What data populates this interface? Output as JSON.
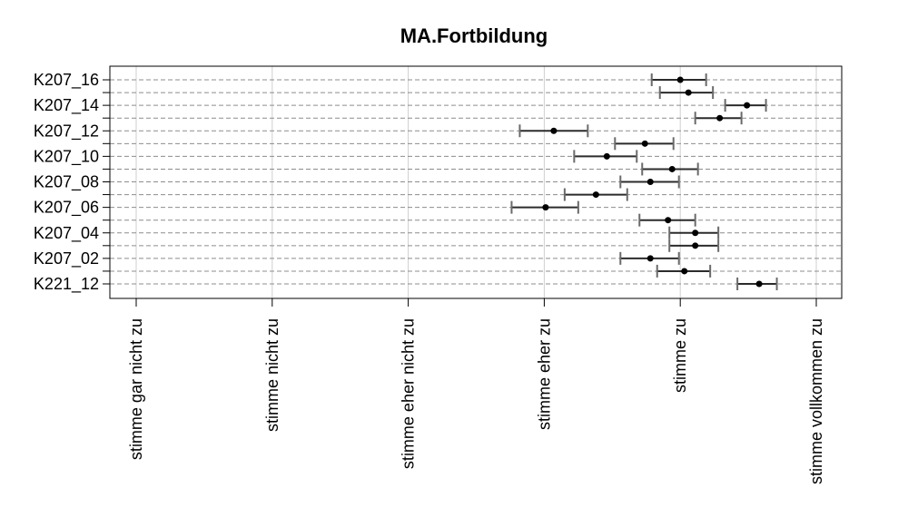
{
  "chart_data": {
    "type": "errorbar",
    "title": "MA.Fortbildung",
    "x_ticks": [
      {
        "value": 1,
        "label": "stimme gar nicht zu"
      },
      {
        "value": 2,
        "label": "stimme nicht zu"
      },
      {
        "value": 3,
        "label": "stimme eher nicht zu"
      },
      {
        "value": 4,
        "label": "stimme eher zu"
      },
      {
        "value": 5,
        "label": "stimme zu"
      },
      {
        "value": 6,
        "label": "stimme vollkommen zu"
      }
    ],
    "xlim": [
      1,
      6
    ],
    "grid": true,
    "items": [
      {
        "label": "K207_16",
        "mean": 5.0,
        "lo": 4.79,
        "hi": 5.19
      },
      {
        "label": "",
        "mean": 5.06,
        "lo": 4.85,
        "hi": 5.24
      },
      {
        "label": "K207_14",
        "mean": 5.49,
        "lo": 5.33,
        "hi": 5.63
      },
      {
        "label": "",
        "mean": 5.29,
        "lo": 5.11,
        "hi": 5.45
      },
      {
        "label": "K207_12",
        "mean": 4.07,
        "lo": 3.82,
        "hi": 4.32
      },
      {
        "label": "",
        "mean": 4.74,
        "lo": 4.52,
        "hi": 4.95
      },
      {
        "label": "K207_10",
        "mean": 4.46,
        "lo": 4.22,
        "hi": 4.68
      },
      {
        "label": "",
        "mean": 4.94,
        "lo": 4.72,
        "hi": 5.13
      },
      {
        "label": "K207_08",
        "mean": 4.78,
        "lo": 4.56,
        "hi": 4.99
      },
      {
        "label": "",
        "mean": 4.38,
        "lo": 4.15,
        "hi": 4.61
      },
      {
        "label": "K207_06",
        "mean": 4.01,
        "lo": 3.76,
        "hi": 4.25
      },
      {
        "label": "",
        "mean": 4.91,
        "lo": 4.7,
        "hi": 5.11
      },
      {
        "label": "K207_04",
        "mean": 5.11,
        "lo": 4.92,
        "hi": 5.28
      },
      {
        "label": "",
        "mean": 5.11,
        "lo": 4.92,
        "hi": 5.28
      },
      {
        "label": "K207_02",
        "mean": 4.78,
        "lo": 4.56,
        "hi": 4.99
      },
      {
        "label": "",
        "mean": 5.03,
        "lo": 4.83,
        "hi": 5.22
      },
      {
        "label": "K221_12",
        "mean": 5.58,
        "lo": 5.42,
        "hi": 5.71
      }
    ]
  }
}
